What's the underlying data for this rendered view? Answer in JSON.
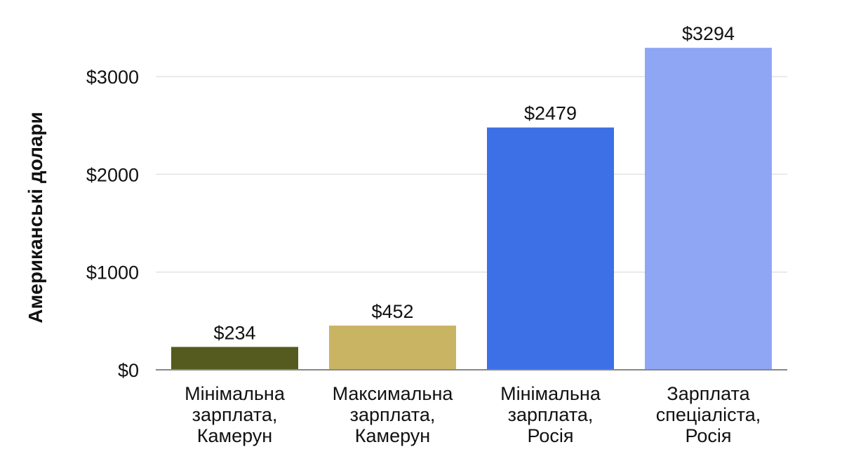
{
  "chart_data": {
    "type": "bar",
    "title": "",
    "xlabel": "",
    "ylabel": "Американські долари",
    "categories": [
      [
        "Мінімальна",
        "зарплата,",
        "Камерун"
      ],
      [
        "Максимальна",
        "зарплата,",
        "Камерун"
      ],
      [
        "Мінімальна",
        "зарплата,",
        "Росія"
      ],
      [
        "Зарплата",
        "спеціаліста,",
        "Росія"
      ]
    ],
    "values": [
      234,
      452,
      2479,
      3294
    ],
    "value_labels": [
      "$234",
      "$452",
      "$2479",
      "$3294"
    ],
    "colors": [
      "#555a1e",
      "#c9b464",
      "#3d6fe6",
      "#8fa6f5"
    ],
    "ylim": [
      0,
      3300
    ],
    "yticks": [
      0,
      1000,
      2000,
      3000
    ],
    "ytick_labels": [
      "$0",
      "$1000",
      "$2000",
      "$3000"
    ],
    "grid": true,
    "legend": "none"
  }
}
